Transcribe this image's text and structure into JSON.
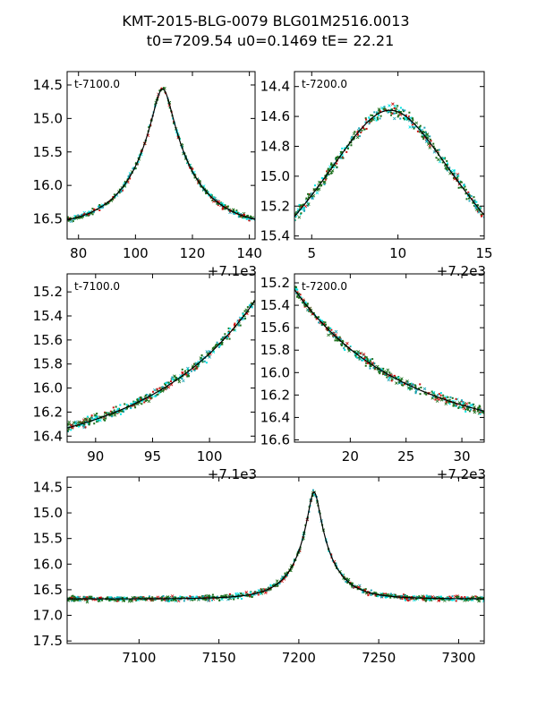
{
  "title": {
    "line1": "KMT-2015-BLG-0079 BLG01M2516.0013",
    "line2": "t0=7209.54 u0=0.1469 tE=  22.21"
  },
  "colors": {
    "cyan": "#00e5e5",
    "teal": "#1aa3b3",
    "red": "#cc1111",
    "green": "#1a6e1a",
    "model": "#000000"
  },
  "chart_data": [
    {
      "id": "top-left",
      "type": "scatter",
      "label": "t-7100.0",
      "xlim": [
        76,
        142
      ],
      "ylim": [
        16.8,
        14.3
      ],
      "xticks": [
        80,
        100,
        120,
        140
      ],
      "xtick_labels": [
        "80",
        "100",
        "120",
        "140"
      ],
      "yticks": [
        14.5,
        15.0,
        15.5,
        16.0,
        16.5
      ],
      "ytick_labels": [
        "14.5",
        "15.0",
        "15.5",
        "16.0",
        "16.5"
      ],
      "x_offset_label": "+7.1e3",
      "model": {
        "t0": 109.54,
        "u0": 0.1469,
        "tE": 22.21,
        "base": 16.65
      }
    },
    {
      "id": "top-right",
      "type": "scatter",
      "label": "t-7200.0",
      "xlim": [
        4,
        15
      ],
      "ylim": [
        15.42,
        14.3
      ],
      "xticks": [
        5,
        10,
        15
      ],
      "xtick_labels": [
        "5",
        "10",
        "15"
      ],
      "yticks": [
        14.4,
        14.6,
        14.8,
        15.0,
        15.2,
        15.4
      ],
      "ytick_labels": [
        "14.4",
        "14.6",
        "14.8",
        "15.0",
        "15.2",
        "15.4"
      ],
      "x_offset_label": "+7.2e3",
      "model": {
        "t0": 9.54,
        "u0": 0.1469,
        "tE": 22.21,
        "base": 16.65
      }
    },
    {
      "id": "mid-left",
      "type": "scatter",
      "label": "t-7100.0",
      "xlim": [
        87.5,
        104
      ],
      "ylim": [
        16.45,
        15.05
      ],
      "xticks": [
        90,
        95,
        100
      ],
      "xtick_labels": [
        "90",
        "95",
        "100"
      ],
      "yticks": [
        15.2,
        15.4,
        15.6,
        15.8,
        16.0,
        16.2,
        16.4
      ],
      "ytick_labels": [
        "15.2",
        "15.4",
        "15.6",
        "15.8",
        "16.0",
        "16.2",
        "16.4"
      ],
      "x_offset_label": "+7.1e3",
      "model": {
        "t0": 109.54,
        "u0": 0.1469,
        "tE": 22.21,
        "base": 16.65
      }
    },
    {
      "id": "mid-right",
      "type": "scatter",
      "label": "t-7200.0",
      "xlim": [
        15,
        32
      ],
      "ylim": [
        16.62,
        15.12
      ],
      "xticks": [
        20,
        25,
        30
      ],
      "xtick_labels": [
        "20",
        "25",
        "30"
      ],
      "yticks": [
        15.2,
        15.4,
        15.6,
        15.8,
        16.0,
        16.2,
        16.4,
        16.6
      ],
      "ytick_labels": [
        "15.2",
        "15.4",
        "15.6",
        "15.8",
        "16.0",
        "16.2",
        "16.4",
        "16.6"
      ],
      "x_offset_label": "+7.2e3",
      "model": {
        "t0": 9.54,
        "u0": 0.1469,
        "tE": 22.21,
        "base": 16.65
      }
    },
    {
      "id": "bottom",
      "type": "scatter",
      "label": "",
      "xlim": [
        7055,
        7316
      ],
      "ylim": [
        17.55,
        14.3
      ],
      "xticks": [
        7100,
        7150,
        7200,
        7250,
        7300
      ],
      "xtick_labels": [
        "7100",
        "7150",
        "7200",
        "7250",
        "7300"
      ],
      "yticks": [
        14.5,
        15.0,
        15.5,
        16.0,
        16.5,
        17.0,
        17.5
      ],
      "ytick_labels": [
        "14.5",
        "15.0",
        "15.5",
        "16.0",
        "16.5",
        "17.0",
        "17.5"
      ],
      "x_offset_label": "",
      "model": {
        "t0": 7209.54,
        "u0": 0.1469,
        "tE": 22.21,
        "base": 16.68
      }
    }
  ]
}
